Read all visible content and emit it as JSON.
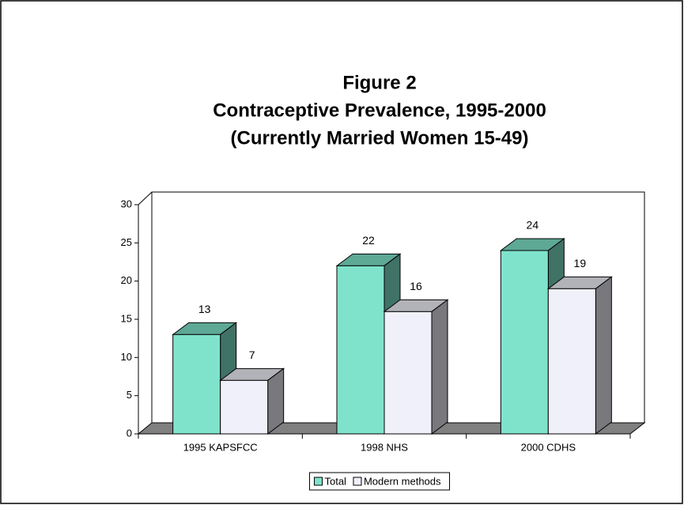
{
  "chart_data": {
    "type": "bar",
    "title": "Figure 2",
    "subtitle": [
      "Contraceptive Prevalence, 1995-2000",
      "(Currently Married Women 15-49)"
    ],
    "categories": [
      "1995 KAPSFCC",
      "1998 NHS",
      "2000 CDHS"
    ],
    "series": [
      {
        "name": "Total",
        "color": "#7fe3cb",
        "values": [
          13,
          22,
          24
        ]
      },
      {
        "name": "Modern methods",
        "color": "#f0f0fa",
        "values": [
          7,
          16,
          19
        ]
      }
    ],
    "ylim": [
      0,
      30
    ],
    "yticks": [
      0,
      5,
      10,
      15,
      20,
      25,
      30
    ],
    "legend": "bottom"
  }
}
